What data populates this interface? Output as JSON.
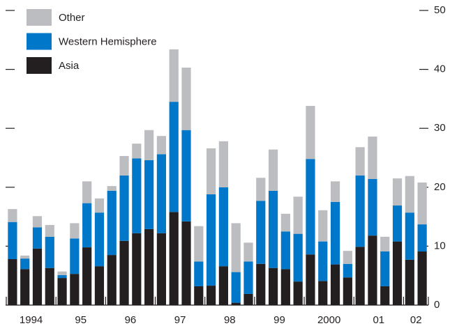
{
  "chart_data": {
    "type": "stacked_bar",
    "categories": [
      "1994",
      null,
      null,
      null,
      "95",
      null,
      null,
      null,
      "96",
      null,
      null,
      null,
      "97",
      null,
      null,
      null,
      "98",
      null,
      null,
      null,
      "99",
      null,
      null,
      null,
      "2000",
      null,
      null,
      null,
      "01",
      null,
      null,
      null,
      "02",
      null
    ],
    "series": [
      {
        "name": "Asia",
        "color": "#231f20",
        "values": [
          7.8,
          6.1,
          9.6,
          6.3,
          4.6,
          5.3,
          9.8,
          6.6,
          8.5,
          10.9,
          12.2,
          12.9,
          12.2,
          15.8,
          14.2,
          3.2,
          3.3,
          6.6,
          0.4,
          1.9,
          7.0,
          6.3,
          6.1,
          4.0,
          8.6,
          4.1,
          6.9,
          4.7,
          9.9,
          11.8,
          3.2,
          10.8,
          7.7,
          9.1
        ]
      },
      {
        "name": "Western Hemisphere",
        "color": "#0077c8",
        "values": [
          6.3,
          1.8,
          3.6,
          5.3,
          0.5,
          6.0,
          7.5,
          9.1,
          10.9,
          11.1,
          12.7,
          11.7,
          13.4,
          18.7,
          15.5,
          4.2,
          15.5,
          13.4,
          5.2,
          5.5,
          10.7,
          13.1,
          6.4,
          8.1,
          16.2,
          6.7,
          10.6,
          2.3,
          12.1,
          9.6,
          5.9,
          6.1,
          8.0,
          4.6
        ]
      },
      {
        "name": "Other",
        "color": "#bcbdc0",
        "values": [
          2.2,
          0.5,
          1.9,
          2.0,
          0.6,
          2.6,
          3.7,
          2.4,
          0.8,
          3.3,
          2.5,
          5.1,
          3.1,
          8.9,
          10.6,
          6.0,
          7.8,
          7.8,
          8.3,
          3.2,
          3.9,
          7.0,
          3.0,
          6.3,
          9.0,
          5.3,
          3.5,
          2.2,
          4.8,
          7.2,
          2.5,
          4.6,
          6.2,
          7.1
        ]
      }
    ],
    "ylim": [
      0,
      50
    ],
    "yticks": [
      0,
      10,
      20,
      30,
      40,
      50
    ],
    "legend": "upper left"
  }
}
